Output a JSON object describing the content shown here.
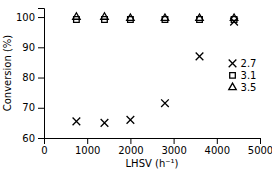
{
  "chart_data": {
    "type": "scatter",
    "xlabel": "LHSV (h⁻¹)",
    "ylabel": "Conversion (%)",
    "x": [
      750,
      1400,
      2000,
      2800,
      3600,
      4400
    ],
    "series": [
      {
        "name": "2.7",
        "marker": "x",
        "color": "black",
        "values": [
          65.5,
          65.0,
          66.0,
          71.5,
          87.0,
          98.5
        ]
      },
      {
        "name": "3.1",
        "marker": "square",
        "color": "black",
        "values": [
          99.2,
          99.2,
          99.2,
          99.2,
          99.2,
          99.2
        ]
      },
      {
        "name": "3.5",
        "marker": "triangle",
        "color": "black",
        "values": [
          100.0,
          100.0,
          99.6,
          99.6,
          99.6,
          99.6
        ]
      }
    ],
    "xlim": [
      0,
      5000
    ],
    "ylim": [
      60,
      103
    ],
    "xticks": [
      0,
      1000,
      2000,
      3000,
      4000,
      5000
    ],
    "yticks": [
      60,
      70,
      80,
      90,
      100
    ],
    "legend": "upper right"
  }
}
